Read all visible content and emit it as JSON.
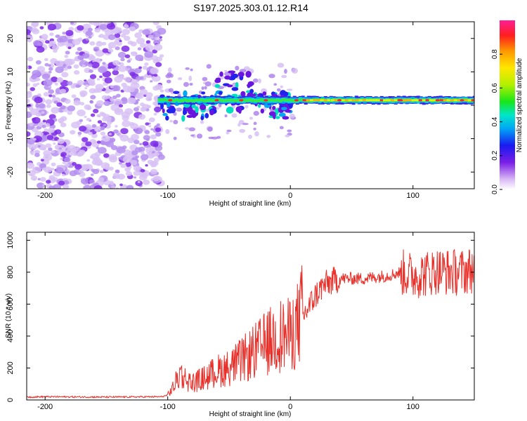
{
  "figure": {
    "title": "S197.2025.303.01.12.R14"
  },
  "chart_data": [
    {
      "type": "heatmap",
      "title": "S197.2025.303.01.12.R14",
      "xlabel": "Height of straight line (km)",
      "ylabel": "Frequency (Hz)",
      "xlim": [
        -215,
        150
      ],
      "ylim": [
        -25,
        25
      ],
      "xticks": [
        -200,
        -100,
        0,
        100
      ],
      "yticks": [
        -20,
        -10,
        0,
        10,
        20
      ],
      "colorbar": {
        "label": "Normalized spectral amplitude",
        "range": [
          0.0,
          1.0
        ],
        "ticks": [
          0.0,
          0.2,
          0.4,
          0.6,
          0.8
        ],
        "tick_labels": [
          "0.0",
          "0.2",
          "0.4",
          "0.6",
          "0.8"
        ]
      },
      "features": {
        "noise_region_x": [
          -215,
          -108
        ],
        "band_center_hz": 1.5,
        "band_start_x": -108,
        "band_strongest_x": [
          10,
          150
        ],
        "band_peak_amplitude": 0.95
      }
    },
    {
      "type": "line",
      "xlabel": "Height of straight line (km)",
      "ylabel": "SNR (10 * v/v)",
      "xlim": [
        -215,
        150
      ],
      "ylim": [
        0,
        1050
      ],
      "xticks": [
        -200,
        -100,
        0,
        100
      ],
      "yticks": [
        0,
        200,
        400,
        600,
        800,
        1000
      ],
      "series": [
        {
          "name": "SNR",
          "color": "#e8302a",
          "x": [
            -215,
            -200,
            -150,
            -105,
            -100,
            -95,
            -90,
            -85,
            -80,
            -70,
            -60,
            -50,
            -40,
            -30,
            -20,
            -10,
            0,
            5,
            10,
            15,
            20,
            25,
            30,
            40,
            50,
            60,
            70,
            80,
            90,
            100,
            110,
            120,
            130,
            140,
            150
          ],
          "y": [
            18,
            20,
            18,
            20,
            30,
            80,
            160,
            120,
            100,
            130,
            170,
            190,
            230,
            280,
            330,
            380,
            380,
            430,
            520,
            580,
            650,
            700,
            730,
            760,
            760,
            760,
            770,
            780,
            800,
            780,
            790,
            810,
            800,
            800,
            820
          ]
        }
      ]
    }
  ]
}
